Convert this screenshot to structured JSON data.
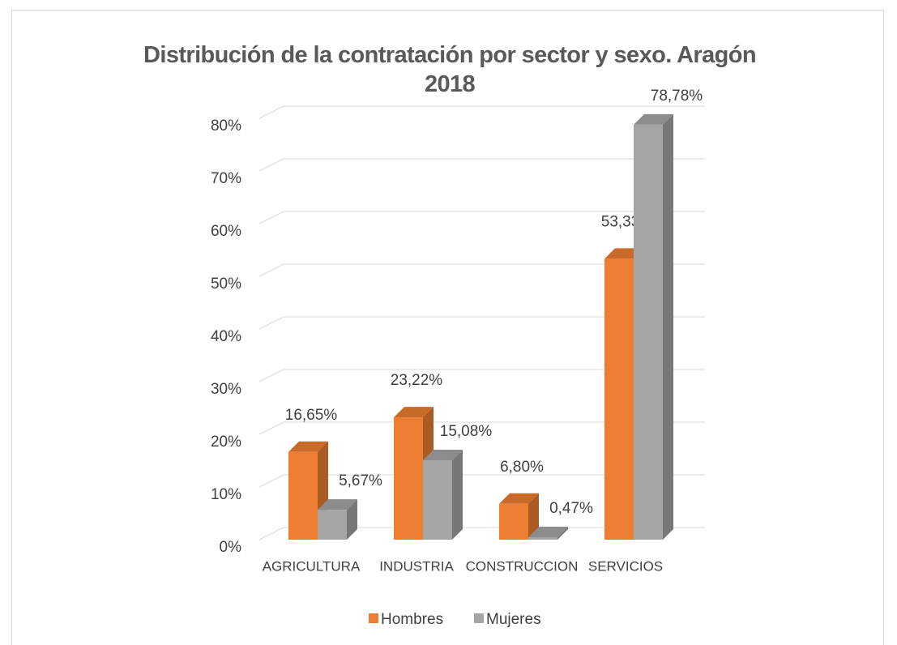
{
  "chart_data": {
    "type": "bar3d",
    "title": "Distribución de la contratación por sector y sexo. Aragón 2018",
    "categories": [
      "AGRICULTURA",
      "INDUSTRIA",
      "CONSTRUCCION",
      "SERVICIOS"
    ],
    "series": [
      {
        "name": "Hombres",
        "color": "#ed7d31",
        "values": [
          16.65,
          23.22,
          6.8,
          53.33
        ],
        "value_labels": [
          "16,65%",
          "23,22%",
          "6,80%",
          "53,33%"
        ]
      },
      {
        "name": "Mujeres",
        "color": "#a5a5a5",
        "values": [
          5.67,
          15.08,
          0.47,
          78.78
        ],
        "value_labels": [
          "5,67%",
          "15,08%",
          "0,47%",
          "78,78%"
        ]
      }
    ],
    "ylim": [
      0,
      80
    ],
    "yticks": [
      {
        "value": 0,
        "label": "0%"
      },
      {
        "value": 10,
        "label": "10%"
      },
      {
        "value": 20,
        "label": "20%"
      },
      {
        "value": 30,
        "label": "30%"
      },
      {
        "value": 40,
        "label": "40%"
      },
      {
        "value": 50,
        "label": "50%"
      },
      {
        "value": 60,
        "label": "60%"
      },
      {
        "value": 70,
        "label": "70%"
      },
      {
        "value": 80,
        "label": "80%"
      }
    ],
    "grid": true,
    "legend": "bottom"
  }
}
